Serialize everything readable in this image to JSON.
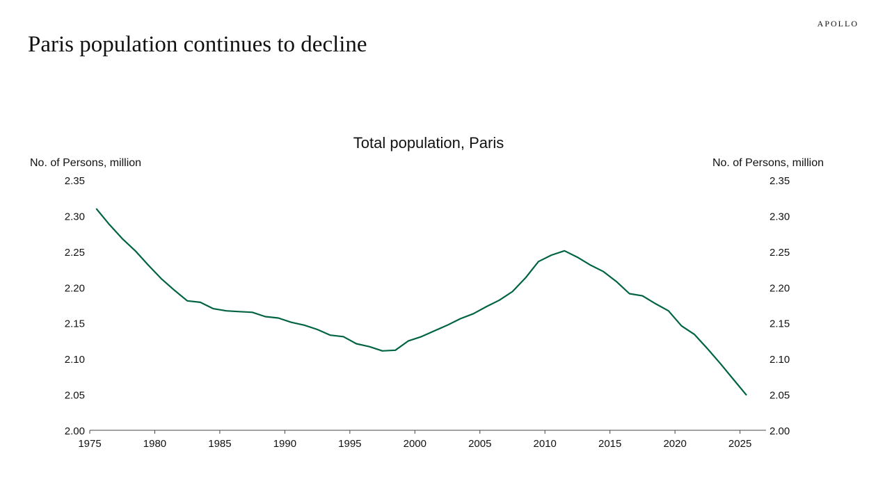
{
  "brand": "APOLLO",
  "headline": "Paris population continues to decline",
  "chart_data": {
    "type": "line",
    "title": "Total population, Paris",
    "ylabel_left": "No. of Persons, million",
    "ylabel_right": "No. of Persons, million",
    "xlim": [
      1975,
      2027
    ],
    "ylim": [
      2.0,
      2.35
    ],
    "xticks": [
      1975,
      1980,
      1985,
      1990,
      1995,
      2000,
      2005,
      2010,
      2015,
      2020,
      2025
    ],
    "yticks": [
      "2.00",
      "2.05",
      "2.10",
      "2.15",
      "2.20",
      "2.25",
      "2.30",
      "2.35"
    ],
    "grid": false,
    "line_color": "#006341",
    "series": [
      {
        "x": [
          1975.5,
          1976.5,
          1977.5,
          1978.5,
          1979.5,
          1980.5,
          1981.5,
          1982.5,
          1983.5,
          1984.5,
          1985.5,
          1986.5,
          1987.5,
          1988.5,
          1989.5,
          1990.5,
          1991.5,
          1992.5,
          1993.5,
          1994.5,
          1995.5,
          1996.5,
          1997.5,
          1998.5,
          1999.5,
          2000.5,
          2001.5,
          2002.5,
          2003.5,
          2004.5,
          2005.5,
          2006.5,
          2007.5,
          2008.5,
          2009.5,
          2010.5,
          2011.5,
          2012.5,
          2013.5,
          2014.5,
          2015.5,
          2016.5,
          2017.5,
          2018.5,
          2019.5,
          2020.5,
          2021.5,
          2022.5,
          2023.5,
          2024.5,
          2025.5
        ],
        "values": [
          2.31,
          2.288,
          2.268,
          2.251,
          2.231,
          2.212,
          2.196,
          2.181,
          2.179,
          2.17,
          2.167,
          2.166,
          2.165,
          2.159,
          2.157,
          2.151,
          2.147,
          2.141,
          2.133,
          2.131,
          2.121,
          2.117,
          2.111,
          2.112,
          2.125,
          2.131,
          2.139,
          2.147,
          2.156,
          2.163,
          2.173,
          2.182,
          2.194,
          2.213,
          2.236,
          2.245,
          2.251,
          2.242,
          2.231,
          2.222,
          2.208,
          2.191,
          2.188,
          2.177,
          2.167,
          2.146,
          2.134,
          2.114,
          2.093,
          2.071,
          2.049
        ]
      }
    ]
  }
}
